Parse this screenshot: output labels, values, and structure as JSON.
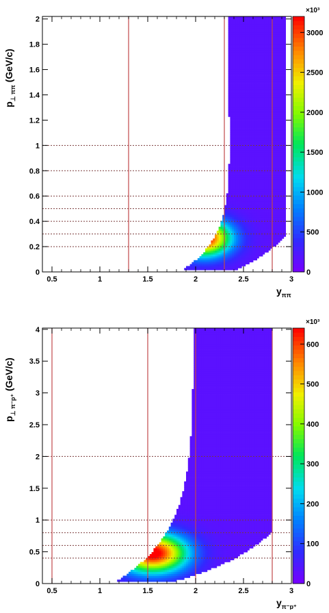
{
  "chart_data": [
    {
      "type": "heatmap",
      "xlabel_main": "y",
      "xlabel_sub": "ππ",
      "ylabel_main": "p",
      "ylabel_sub": "⊥ ππ",
      "ylabel_unit": "(GeV/c)",
      "xlim": [
        0.4,
        3.0
      ],
      "ylim": [
        0,
        2.02
      ],
      "x_ticks": [
        0.5,
        1,
        1.5,
        2,
        2.5,
        3
      ],
      "x_tick_labels": [
        "0.5",
        "1",
        "1.5",
        "2",
        "2.5",
        "3"
      ],
      "y_ticks": [
        0,
        0.2,
        0.4,
        0.6,
        0.8,
        1,
        1.2,
        1.4,
        1.6,
        1.8,
        2
      ],
      "y_tick_labels": [
        "0",
        "0.2",
        "0.4",
        "0.6",
        "0.8",
        "1",
        "1.2",
        "1.4",
        "1.6",
        "1.8",
        "2"
      ],
      "color_max": 3200,
      "color_ticks": [
        0,
        500,
        1000,
        1500,
        2000,
        2500,
        3000
      ],
      "color_tick_labels": [
        "0",
        "500",
        "1000",
        "1500",
        "2000",
        "2500",
        "3000"
      ],
      "color_exponent": "×10³",
      "vlines": [
        1.3,
        2.3,
        2.8
      ],
      "hlines": [
        0.2,
        0.3,
        0.4,
        0.5,
        0.6,
        0.8,
        1.0
      ],
      "ridge_y0": 2.9,
      "ridge_a": 0.95,
      "ridge_p": 0.4,
      "ridge_max": 2.02,
      "left_width": 0.45,
      "right_width": 0.42,
      "peak": [
        2.08,
        0.27
      ],
      "peak_height": 3200,
      "background_level": 160
    },
    {
      "type": "heatmap",
      "xlabel_main": "y",
      "xlabel_sub": "π⁻p⁺",
      "ylabel_main": "p",
      "ylabel_sub": "⊥ π⁻p⁺",
      "ylabel_unit": "(GeV/c)",
      "xlim": [
        0.4,
        3.0
      ],
      "ylim": [
        0,
        4.02
      ],
      "x_ticks": [
        0.5,
        1,
        1.5,
        2,
        2.5,
        3
      ],
      "x_tick_labels": [
        "0.5",
        "1",
        "1.5",
        "2",
        "2.5",
        "3"
      ],
      "y_ticks": [
        0,
        0.5,
        1,
        1.5,
        2,
        2.5,
        3,
        3.5,
        4
      ],
      "y_tick_labels": [
        "0",
        "0.5",
        "1",
        "1.5",
        "2",
        "2.5",
        "3",
        "3.5",
        "4"
      ],
      "color_max": 640,
      "color_ticks": [
        0,
        100,
        200,
        300,
        400,
        500,
        600
      ],
      "color_tick_labels": [
        "0",
        "100",
        "200",
        "300",
        "400",
        "500",
        "600"
      ],
      "color_exponent": "×10³",
      "vlines": [
        0.5,
        1.5,
        2.0,
        2.8
      ],
      "hlines": [
        0.4,
        0.6,
        0.8,
        1.0,
        2.0
      ],
      "ridge_y0": 2.75,
      "ridge_a": 1.5,
      "ridge_p": 0.5,
      "ridge_max": 4.02,
      "left_width": 0.65,
      "right_width": 0.45,
      "peak": [
        1.55,
        0.48
      ],
      "peak_height": 640,
      "background_level": 32
    }
  ]
}
